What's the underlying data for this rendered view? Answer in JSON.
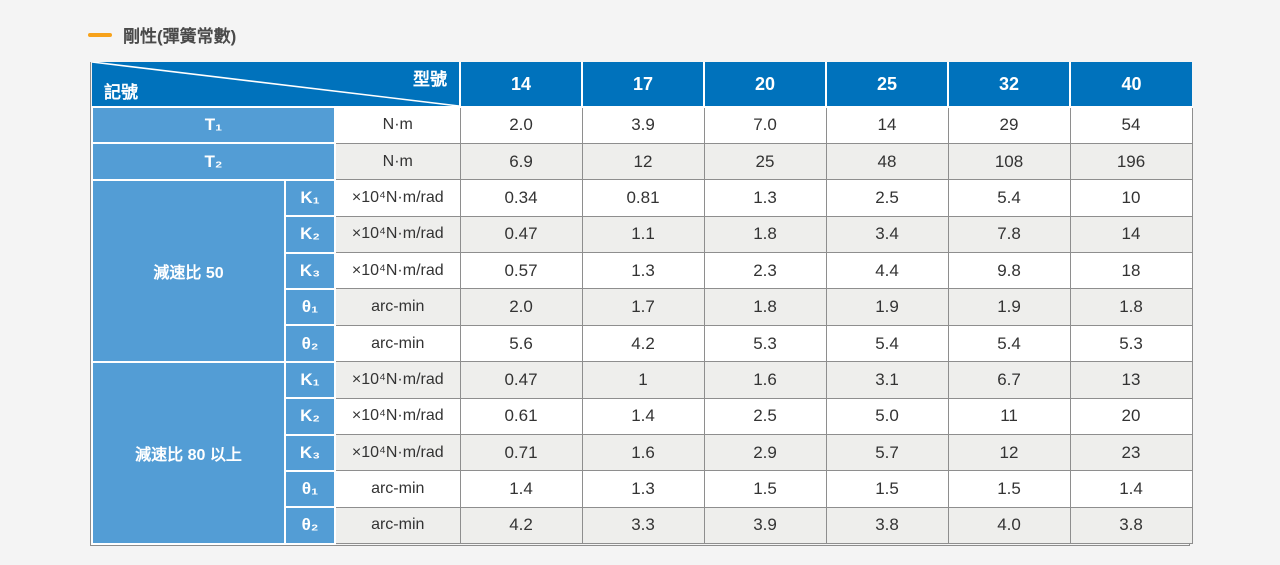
{
  "header": {
    "title": "剛性(彈簧常數)"
  },
  "colors": {
    "header_blue": "#0072bc",
    "label_blue": "#539dd5",
    "alt_row_gray": "#eeeeec",
    "border_gray": "#8e8e8e",
    "accent_orange": "#f7a21a",
    "title_text": "#4a4a4a"
  },
  "icons": {
    "title_dash": "orange-dash-bullet"
  },
  "table": {
    "corner_top_right": "型號",
    "corner_bottom_left": "記號",
    "models": [
      "14",
      "17",
      "20",
      "25",
      "32",
      "40"
    ],
    "simple_rows": [
      {
        "label": "T₁",
        "unit": "N·m",
        "values": [
          "2.0",
          "3.9",
          "7.0",
          "14",
          "29",
          "54"
        ]
      },
      {
        "label": "T₂",
        "unit": "N·m",
        "values": [
          "6.9",
          "12",
          "25",
          "48",
          "108",
          "196"
        ]
      }
    ],
    "groups": [
      {
        "label": "減速比 50",
        "rows": [
          {
            "label": "K₁",
            "unit": "×10⁴N·m/rad",
            "values": [
              "0.34",
              "0.81",
              "1.3",
              "2.5",
              "5.4",
              "10"
            ]
          },
          {
            "label": "K₂",
            "unit": "×10⁴N·m/rad",
            "values": [
              "0.47",
              "1.1",
              "1.8",
              "3.4",
              "7.8",
              "14"
            ]
          },
          {
            "label": "K₃",
            "unit": "×10⁴N·m/rad",
            "values": [
              "0.57",
              "1.3",
              "2.3",
              "4.4",
              "9.8",
              "18"
            ]
          },
          {
            "label": "θ₁",
            "unit": "arc-min",
            "values": [
              "2.0",
              "1.7",
              "1.8",
              "1.9",
              "1.9",
              "1.8"
            ]
          },
          {
            "label": "θ₂",
            "unit": "arc-min",
            "values": [
              "5.6",
              "4.2",
              "5.3",
              "5.4",
              "5.4",
              "5.3"
            ]
          }
        ]
      },
      {
        "label": "減速比 80 以上",
        "rows": [
          {
            "label": "K₁",
            "unit": "×10⁴N·m/rad",
            "values": [
              "0.47",
              "1",
              "1.6",
              "3.1",
              "6.7",
              "13"
            ]
          },
          {
            "label": "K₂",
            "unit": "×10⁴N·m/rad",
            "values": [
              "0.61",
              "1.4",
              "2.5",
              "5.0",
              "11",
              "20"
            ]
          },
          {
            "label": "K₃",
            "unit": "×10⁴N·m/rad",
            "values": [
              "0.71",
              "1.6",
              "2.9",
              "5.7",
              "12",
              "23"
            ]
          },
          {
            "label": "θ₁",
            "unit": "arc-min",
            "values": [
              "1.4",
              "1.3",
              "1.5",
              "1.5",
              "1.5",
              "1.4"
            ]
          },
          {
            "label": "θ₂",
            "unit": "arc-min",
            "values": [
              "4.2",
              "3.3",
              "3.9",
              "3.8",
              "4.0",
              "3.8"
            ]
          }
        ]
      }
    ]
  }
}
